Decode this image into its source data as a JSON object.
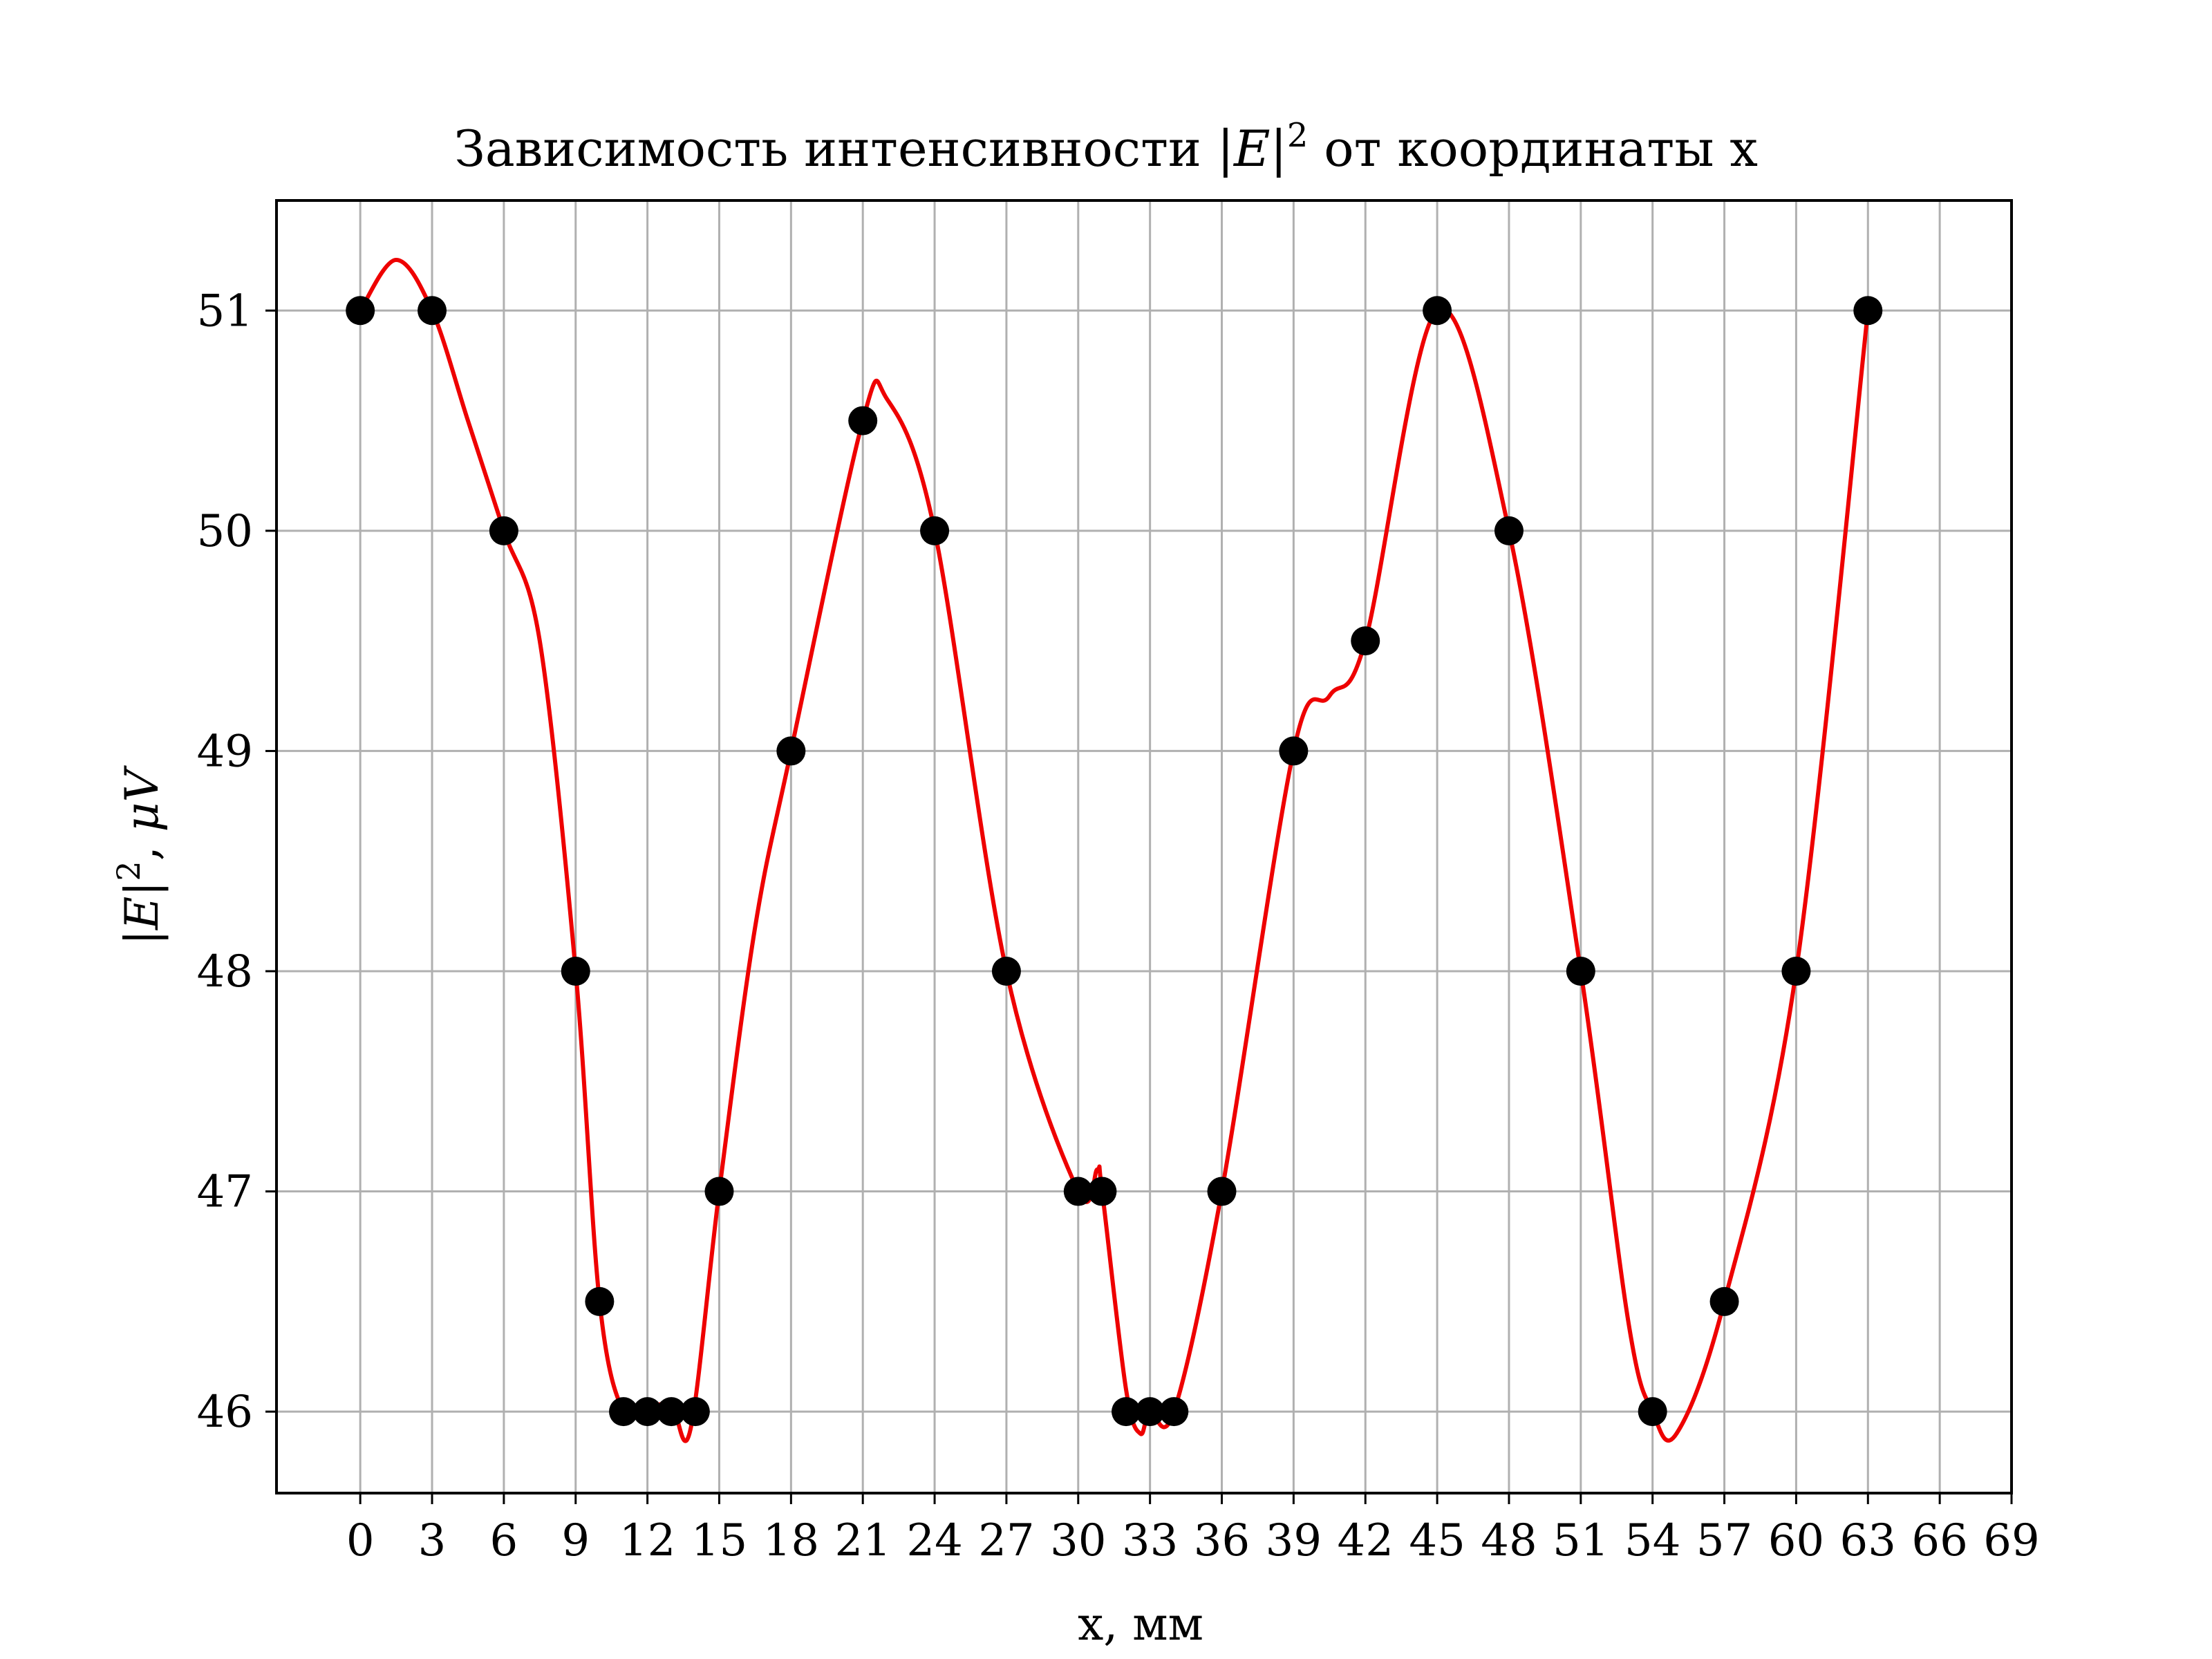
{
  "chart_data": {
    "type": "scatter",
    "title": {
      "prefix": "Зависимость интенсивности |",
      "var": "E",
      "sup": "2",
      "suffix": " от координаты x"
    },
    "xlabel": "x, мм",
    "ylabel": {
      "pre": "|",
      "var": "E",
      "mid": "|",
      "sup": "2",
      "post": ", ",
      "unit": "μV"
    },
    "xlim": [
      -3.5,
      69
    ],
    "ylim": [
      45.63,
      51.5
    ],
    "x_ticks": [
      "0",
      "3",
      "6",
      "9",
      "12",
      "15",
      "18",
      "21",
      "24",
      "27",
      "30",
      "33",
      "36",
      "39",
      "42",
      "45",
      "48",
      "51",
      "54",
      "57",
      "60",
      "63",
      "66",
      "69"
    ],
    "y_ticks": [
      "46",
      "47",
      "48",
      "49",
      "50",
      "51"
    ],
    "grid": true,
    "series": [
      {
        "kind": "points",
        "color": "#000000",
        "x": [
          0,
          3,
          6,
          9,
          10,
          11,
          12,
          13,
          14,
          15,
          18,
          21,
          24,
          27,
          30,
          31,
          32,
          33,
          34,
          36,
          39,
          42,
          45,
          48,
          51,
          54,
          57,
          60,
          63
        ],
        "y": [
          51,
          51,
          50,
          48,
          46.5,
          46,
          46,
          46,
          46,
          47,
          49,
          50.5,
          50,
          48,
          47,
          47,
          46,
          46,
          46,
          47,
          49,
          49.5,
          51,
          50,
          48,
          46,
          46.5,
          48,
          51
        ]
      },
      {
        "kind": "fit-curve",
        "color": "#ee0000",
        "x": [
          0,
          1.5,
          3,
          4.5,
          6,
          7.5,
          9,
          10,
          11,
          12,
          13,
          13.8,
          15,
          16.5,
          18,
          21,
          22,
          24,
          27,
          30,
          30.8,
          31,
          32,
          32.6,
          33,
          34,
          36,
          39,
          40.5,
          42,
          45,
          48,
          51,
          53,
          54,
          55,
          57,
          60,
          63
        ],
        "y": [
          51,
          51.23,
          51,
          50.5,
          50,
          49.5,
          48,
          46.5,
          46,
          46.02,
          46.03,
          45.92,
          47,
          48.2,
          49,
          50.5,
          50.6,
          50,
          48,
          47,
          47.1,
          47,
          46.1,
          45.9,
          46,
          46,
          47,
          49,
          49.25,
          49.5,
          51,
          50,
          48,
          46.4,
          46,
          45.9,
          46.5,
          48,
          51
        ]
      }
    ]
  }
}
